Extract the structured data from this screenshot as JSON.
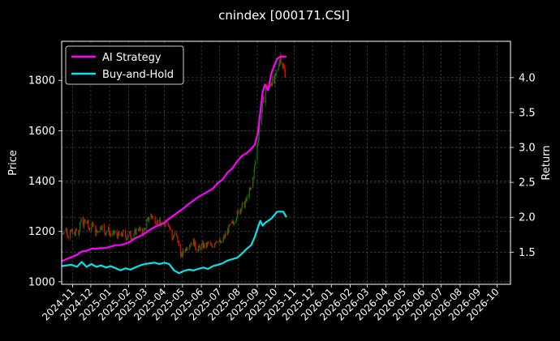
{
  "chart_data": {
    "type": "line",
    "title": "cnindex [000171.CSI]",
    "ylabel": "Price",
    "y2label": "Return",
    "xlabel": "",
    "x_ticks": [
      "2024-11",
      "2024-12",
      "2025-01",
      "2025-02",
      "2025-03",
      "2025-04",
      "2025-05",
      "2025-06",
      "2025-07",
      "2025-08",
      "2025-09",
      "2025-10",
      "2025-11",
      "2025-12",
      "2026-01",
      "2026-02",
      "2026-03",
      "2026-04",
      "2026-05",
      "2026-06",
      "2026-07",
      "2026-08",
      "2026-09",
      "2026-10"
    ],
    "xlim": [
      "2024-10-14",
      "2026-10-23"
    ],
    "ylim": [
      990,
      1955
    ],
    "y_ticks": [
      1000,
      1200,
      1400,
      1600,
      1800
    ],
    "y2lim": [
      1.04,
      4.52
    ],
    "y2_ticks": [
      1.5,
      2.0,
      2.5,
      3.0,
      3.5,
      4.0
    ],
    "grid": true,
    "legend": {
      "placement": "top-left",
      "entries": [
        "AI Strategy",
        "Buy-and-Hold"
      ]
    },
    "colors": {
      "up": "#008000",
      "down": "#ff0000",
      "ai": "#ff00ff",
      "bh": "#00e5ee",
      "background": "#000000",
      "text": "#ffffff"
    },
    "price_series": {
      "name": "candlesticks",
      "points": [
        [
          "2024-10-16",
          1190
        ],
        [
          "2024-10-20",
          1230
        ],
        [
          "2024-10-24",
          1175
        ],
        [
          "2024-10-28",
          1215
        ],
        [
          "2024-11-02",
          1180
        ],
        [
          "2024-11-07",
          1205
        ],
        [
          "2024-11-11",
          1185
        ],
        [
          "2024-11-15",
          1255
        ],
        [
          "2024-11-19",
          1225
        ],
        [
          "2024-11-24",
          1260
        ],
        [
          "2024-11-29",
          1205
        ],
        [
          "2024-12-04",
          1230
        ],
        [
          "2024-12-09",
          1195
        ],
        [
          "2024-12-14",
          1205
        ],
        [
          "2024-12-19",
          1225
        ],
        [
          "2024-12-24",
          1195
        ],
        [
          "2024-12-29",
          1210
        ],
        [
          "2025-01-04",
          1180
        ],
        [
          "2025-01-09",
          1195
        ],
        [
          "2025-01-14",
          1185
        ],
        [
          "2025-01-19",
          1180
        ],
        [
          "2025-01-24",
          1195
        ],
        [
          "2025-01-29",
          1175
        ],
        [
          "2025-02-03",
          1190
        ],
        [
          "2025-02-08",
          1175
        ],
        [
          "2025-02-13",
          1200
        ],
        [
          "2025-02-18",
          1215
        ],
        [
          "2025-02-23",
          1185
        ],
        [
          "2025-02-28",
          1215
        ],
        [
          "2025-03-05",
          1245
        ],
        [
          "2025-03-10",
          1265
        ],
        [
          "2025-03-15",
          1250
        ],
        [
          "2025-03-20",
          1240
        ],
        [
          "2025-03-25",
          1230
        ],
        [
          "2025-03-30",
          1215
        ],
        [
          "2025-04-04",
          1250
        ],
        [
          "2025-04-09",
          1225
        ],
        [
          "2025-04-14",
          1170
        ],
        [
          "2025-04-19",
          1195
        ],
        [
          "2025-04-24",
          1155
        ],
        [
          "2025-04-29",
          1100
        ],
        [
          "2025-05-04",
          1125
        ],
        [
          "2025-05-09",
          1140
        ],
        [
          "2025-05-14",
          1155
        ],
        [
          "2025-05-19",
          1160
        ],
        [
          "2025-05-24",
          1130
        ],
        [
          "2025-05-29",
          1135
        ],
        [
          "2025-06-03",
          1145
        ],
        [
          "2025-06-08",
          1140
        ],
        [
          "2025-06-13",
          1155
        ],
        [
          "2025-06-18",
          1135
        ],
        [
          "2025-06-23",
          1160
        ],
        [
          "2025-06-28",
          1170
        ],
        [
          "2025-07-03",
          1150
        ],
        [
          "2025-07-08",
          1175
        ],
        [
          "2025-07-13",
          1195
        ],
        [
          "2025-07-18",
          1220
        ],
        [
          "2025-07-23",
          1235
        ],
        [
          "2025-07-28",
          1260
        ],
        [
          "2025-08-02",
          1285
        ],
        [
          "2025-08-07",
          1300
        ],
        [
          "2025-08-12",
          1310
        ],
        [
          "2025-08-17",
          1345
        ],
        [
          "2025-08-22",
          1370
        ],
        [
          "2025-08-27",
          1440
        ],
        [
          "2025-09-01",
          1540
        ],
        [
          "2025-09-05",
          1620
        ],
        [
          "2025-09-10",
          1700
        ],
        [
          "2025-09-15",
          1775
        ],
        [
          "2025-09-19",
          1760
        ],
        [
          "2025-09-24",
          1800
        ],
        [
          "2025-09-29",
          1790
        ],
        [
          "2025-10-04",
          1840
        ],
        [
          "2025-10-09",
          1900
        ],
        [
          "2025-10-14",
          1850
        ],
        [
          "2025-10-19",
          1820
        ]
      ]
    },
    "series": [
      {
        "name": "AI Strategy",
        "points": [
          [
            "2024-10-14",
            1.37
          ],
          [
            "2024-10-22",
            1.4
          ],
          [
            "2024-10-30",
            1.43
          ],
          [
            "2024-11-08",
            1.46
          ],
          [
            "2024-11-16",
            1.51
          ],
          [
            "2024-11-24",
            1.52
          ],
          [
            "2024-12-02",
            1.55
          ],
          [
            "2024-12-10",
            1.55
          ],
          [
            "2024-12-18",
            1.56
          ],
          [
            "2024-12-26",
            1.56
          ],
          [
            "2025-01-03",
            1.58
          ],
          [
            "2025-01-11",
            1.6
          ],
          [
            "2025-01-19",
            1.6
          ],
          [
            "2025-01-27",
            1.62
          ],
          [
            "2025-02-04",
            1.65
          ],
          [
            "2025-02-12",
            1.7
          ],
          [
            "2025-02-20",
            1.73
          ],
          [
            "2025-02-28",
            1.77
          ],
          [
            "2025-03-08",
            1.82
          ],
          [
            "2025-03-16",
            1.86
          ],
          [
            "2025-03-24",
            1.89
          ],
          [
            "2025-04-01",
            1.92
          ],
          [
            "2025-04-09",
            1.98
          ],
          [
            "2025-04-17",
            2.03
          ],
          [
            "2025-04-25",
            2.08
          ],
          [
            "2025-05-03",
            2.13
          ],
          [
            "2025-05-11",
            2.19
          ],
          [
            "2025-05-19",
            2.24
          ],
          [
            "2025-05-27",
            2.29
          ],
          [
            "2025-06-04",
            2.33
          ],
          [
            "2025-06-12",
            2.37
          ],
          [
            "2025-06-20",
            2.41
          ],
          [
            "2025-06-28",
            2.49
          ],
          [
            "2025-07-06",
            2.54
          ],
          [
            "2025-07-14",
            2.64
          ],
          [
            "2025-07-22",
            2.7
          ],
          [
            "2025-07-30",
            2.8
          ],
          [
            "2025-08-07",
            2.88
          ],
          [
            "2025-08-15",
            2.92
          ],
          [
            "2025-08-22",
            2.98
          ],
          [
            "2025-08-28",
            3.04
          ],
          [
            "2025-09-02",
            3.2
          ],
          [
            "2025-09-06",
            3.5
          ],
          [
            "2025-09-10",
            3.8
          ],
          [
            "2025-09-14",
            3.9
          ],
          [
            "2025-09-19",
            3.82
          ],
          [
            "2025-09-24",
            4.05
          ],
          [
            "2025-09-29",
            4.17
          ],
          [
            "2025-10-04",
            4.27
          ],
          [
            "2025-10-09",
            4.3
          ],
          [
            "2025-10-14",
            4.3
          ],
          [
            "2025-10-19",
            4.3
          ]
        ]
      },
      {
        "name": "Buy-and-Hold",
        "points": [
          [
            "2024-10-14",
            1.3
          ],
          [
            "2024-10-22",
            1.31
          ],
          [
            "2024-10-30",
            1.32
          ],
          [
            "2024-11-08",
            1.29
          ],
          [
            "2024-11-16",
            1.36
          ],
          [
            "2024-11-24",
            1.29
          ],
          [
            "2024-12-02",
            1.33
          ],
          [
            "2024-12-10",
            1.29
          ],
          [
            "2024-12-18",
            1.31
          ],
          [
            "2024-12-26",
            1.28
          ],
          [
            "2025-01-03",
            1.3
          ],
          [
            "2025-01-11",
            1.27
          ],
          [
            "2025-01-19",
            1.24
          ],
          [
            "2025-01-27",
            1.27
          ],
          [
            "2025-02-04",
            1.25
          ],
          [
            "2025-02-12",
            1.28
          ],
          [
            "2025-02-20",
            1.31
          ],
          [
            "2025-02-28",
            1.33
          ],
          [
            "2025-03-08",
            1.34
          ],
          [
            "2025-03-16",
            1.35
          ],
          [
            "2025-03-24",
            1.33
          ],
          [
            "2025-04-01",
            1.35
          ],
          [
            "2025-04-09",
            1.33
          ],
          [
            "2025-04-17",
            1.24
          ],
          [
            "2025-04-25",
            1.2
          ],
          [
            "2025-05-03",
            1.23
          ],
          [
            "2025-05-11",
            1.25
          ],
          [
            "2025-05-19",
            1.24
          ],
          [
            "2025-05-27",
            1.26
          ],
          [
            "2025-06-04",
            1.28
          ],
          [
            "2025-06-12",
            1.26
          ],
          [
            "2025-06-20",
            1.3
          ],
          [
            "2025-06-28",
            1.32
          ],
          [
            "2025-07-06",
            1.34
          ],
          [
            "2025-07-14",
            1.38
          ],
          [
            "2025-07-22",
            1.4
          ],
          [
            "2025-07-30",
            1.42
          ],
          [
            "2025-08-07",
            1.48
          ],
          [
            "2025-08-15",
            1.55
          ],
          [
            "2025-08-22",
            1.6
          ],
          [
            "2025-08-28",
            1.72
          ],
          [
            "2025-09-02",
            1.85
          ],
          [
            "2025-09-06",
            1.95
          ],
          [
            "2025-09-10",
            1.88
          ],
          [
            "2025-09-14",
            1.92
          ],
          [
            "2025-09-19",
            1.95
          ],
          [
            "2025-09-24",
            1.98
          ],
          [
            "2025-09-29",
            2.03
          ],
          [
            "2025-10-04",
            2.08
          ],
          [
            "2025-10-09",
            2.08
          ],
          [
            "2025-10-14",
            2.08
          ],
          [
            "2025-10-19",
            2.0
          ]
        ]
      }
    ]
  }
}
